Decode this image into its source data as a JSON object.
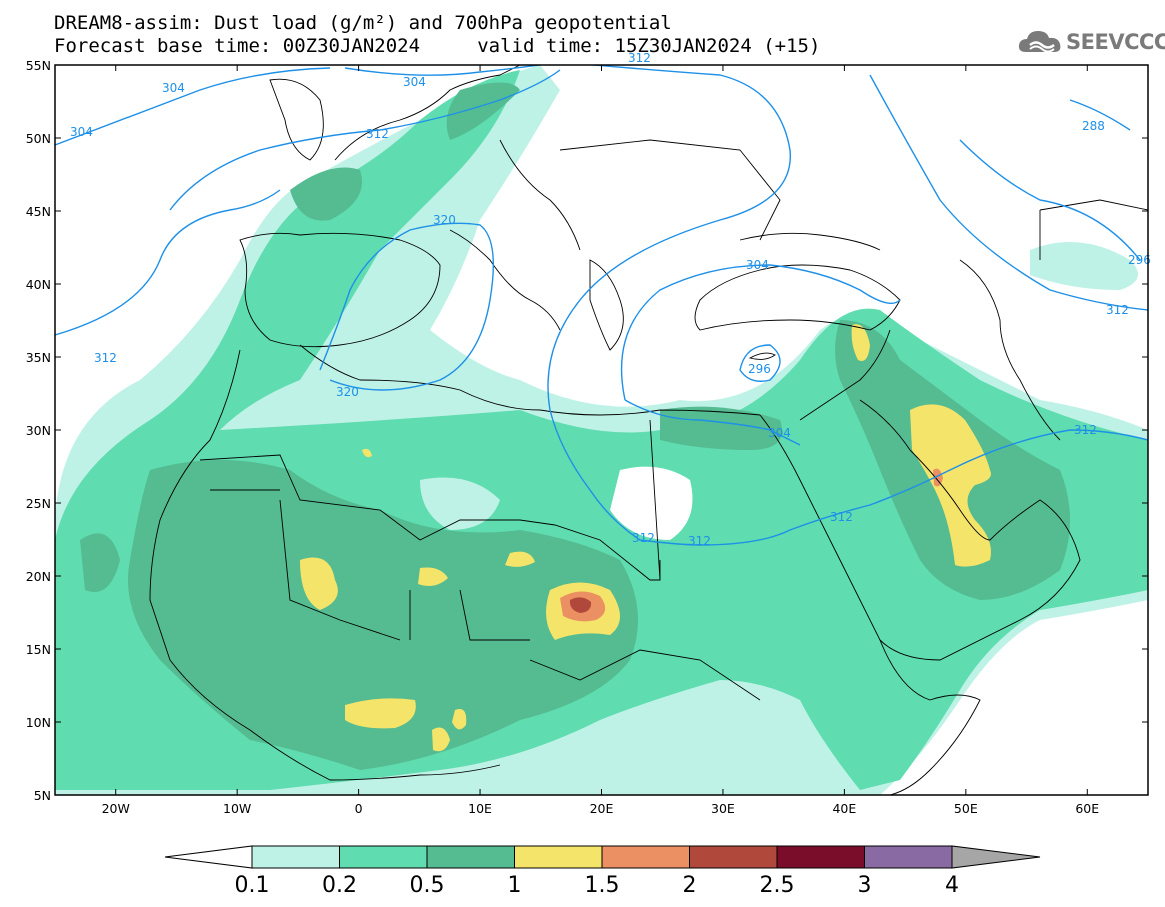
{
  "header": {
    "line1": "DREAM8-assim: Dust load (g/m²) and 700hPa geopotential",
    "line2": "Forecast base time: 00Z30JAN2024     valid time: 15Z30JAN2024 (+15)"
  },
  "logo": {
    "text": "SEEVCCC",
    "icon": "cloud-logo-icon"
  },
  "axes": {
    "lat_labels": [
      "55N",
      "50N",
      "45N",
      "40N",
      "35N",
      "30N",
      "25N",
      "20N",
      "15N",
      "10N",
      "5N"
    ],
    "lon_labels": [
      "20W",
      "10W",
      "0",
      "10E",
      "20E",
      "30E",
      "40E",
      "50E",
      "60E"
    ],
    "lon_range": [
      -25,
      65
    ],
    "lat_range": [
      5,
      55
    ]
  },
  "contours": {
    "color": "#1e90e8",
    "labels": [
      "304",
      "304",
      "304",
      "312",
      "312",
      "320",
      "320",
      "312",
      "296",
      "304",
      "304",
      "312",
      "312",
      "312",
      "312",
      "288",
      "296",
      "304"
    ]
  },
  "colorbar": {
    "levels": [
      "0.1",
      "0.2",
      "0.5",
      "1",
      "1.5",
      "2",
      "2.5",
      "3",
      "4"
    ],
    "colors": [
      "#bff2e6",
      "#5fdcb0",
      "#55bb91",
      "#f5e46a",
      "#eb9062",
      "#b0483c",
      "#7a0e2a",
      "#8a6aa2",
      "#a6a6a6"
    ]
  },
  "chart_data": {
    "type": "heatmap",
    "title": "DREAM8-assim: Dust load (g/m²) and 700hPa geopotential",
    "subtitle": "Forecast base time: 00Z30JAN2024     valid time: 15Z30JAN2024 (+15)",
    "xlim": [
      -25,
      65
    ],
    "ylim": [
      5,
      55
    ],
    "x_ticks": [
      "20W",
      "10W",
      "0",
      "10E",
      "20E",
      "30E",
      "40E",
      "50E",
      "60E"
    ],
    "y_ticks": [
      "55N",
      "50N",
      "45N",
      "40N",
      "35N",
      "30N",
      "25N",
      "20N",
      "15N",
      "10N",
      "5N"
    ],
    "legend_levels": [
      0.1,
      0.2,
      0.5,
      1,
      1.5,
      2,
      2.5,
      3,
      4
    ],
    "contour_levels": [
      288,
      296,
      304,
      312,
      320
    ]
  }
}
